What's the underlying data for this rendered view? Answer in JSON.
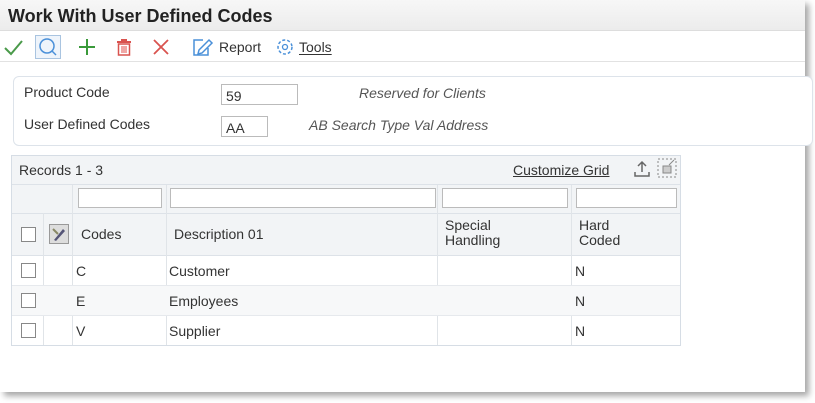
{
  "window": {
    "title": "Work With User Defined Codes"
  },
  "toolbar": {
    "select_icon": "checkmark-icon",
    "find_icon": "search-icon",
    "add_icon": "plus-icon",
    "delete_icon": "trash-icon",
    "close_icon": "x-icon",
    "report_label": "Report",
    "tools_label": "Tools",
    "colors": {
      "check": "#4a9a4a",
      "add": "#3a9a3a",
      "delete": "#d9534f",
      "accent": "#4a90d9"
    }
  },
  "form": {
    "product_code": {
      "label": "Product Code",
      "value": "59",
      "description": "Reserved for Clients"
    },
    "udc": {
      "label": "User Defined Codes",
      "value": "AA",
      "description": "AB Search Type Val Address"
    }
  },
  "grid": {
    "records": "Records 1 - 3",
    "customize": "Customize Grid",
    "columns": {
      "codes": "Codes",
      "description": "Description 01",
      "special": "Special Handling",
      "hard": "Hard Coded"
    },
    "rows": [
      {
        "code": "C",
        "description": "Customer",
        "special": "",
        "hard": "N"
      },
      {
        "code": "E",
        "description": "Employees",
        "special": "",
        "hard": "N"
      },
      {
        "code": "V",
        "description": "Supplier",
        "special": "",
        "hard": "N"
      }
    ]
  }
}
